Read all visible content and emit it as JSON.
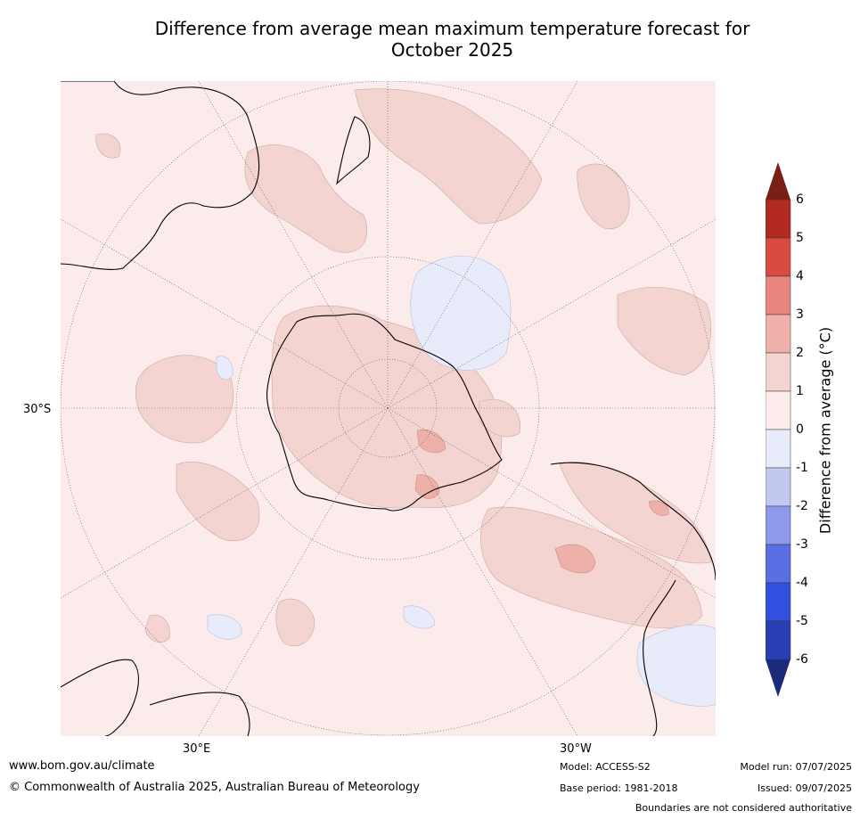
{
  "title": {
    "line1": "Difference from average mean maximum temperature forecast for",
    "line2": "October 2025"
  },
  "map": {
    "projection": "south-polar",
    "lat_label": "30°S",
    "lon_labels": [
      "30°E",
      "30°W"
    ],
    "ocean_color": "#fbeceb"
  },
  "colorbar": {
    "label": "Difference from average (°C)",
    "ticks": [
      "6",
      "5",
      "4",
      "3",
      "2",
      "1",
      "0",
      "-1",
      "-2",
      "-3",
      "-4",
      "-5",
      "-6"
    ],
    "colors": {
      "gt6": "#7a1f14",
      "5to6": "#b32a22",
      "4to5": "#d94a3f",
      "3to4": "#e8867e",
      "2to3": "#edb1aa",
      "1to2": "#f4d4d1",
      "0to1": "#fbeceb",
      "m1to0": "#e8ebfa",
      "m2tom1": "#c2c9f1",
      "m3tom2": "#8d9aea",
      "m4tom3": "#5a6fe3",
      "m5tom4": "#3150e0",
      "m6tom5": "#273fb2",
      "ltm6": "#1c2a7c"
    }
  },
  "footer": {
    "website": "www.bom.gov.au/climate",
    "copyright": "© Commonwealth of Australia 2025, Australian Bureau of Meteorology",
    "model": "Model: ACCESS-S2",
    "base_period": "Base period: 1981-2018",
    "model_run": "Model run: 07/07/2025",
    "issued": "Issued: 09/07/2025",
    "disclaimer": "Boundaries are not considered authoritative"
  }
}
